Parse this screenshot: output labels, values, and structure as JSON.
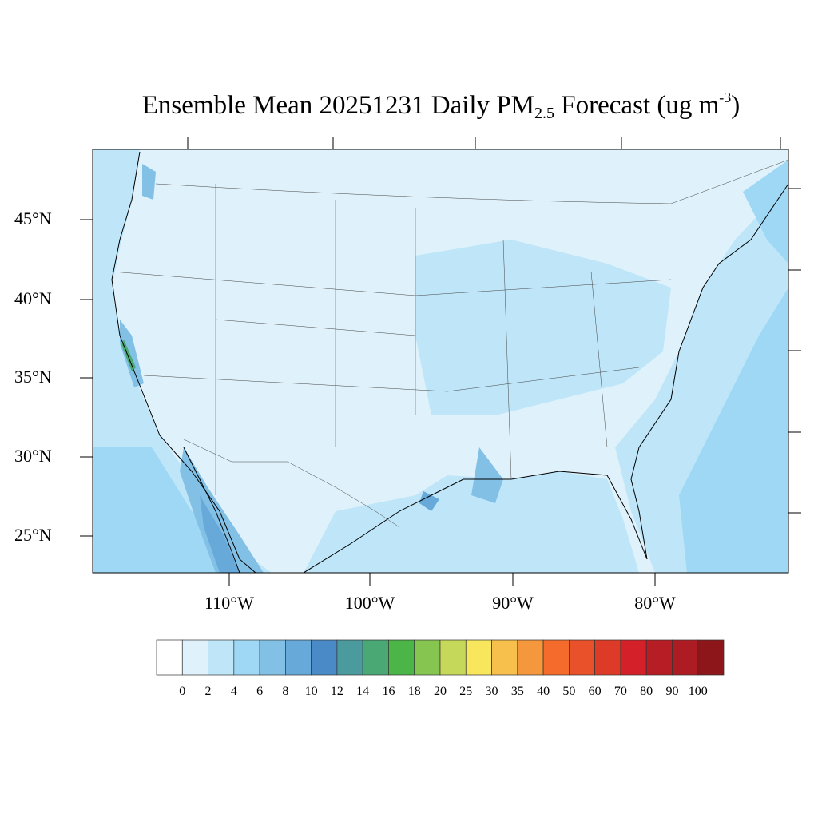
{
  "title": {
    "main": "Ensemble Mean 20251231 Daily PM",
    "subscript": "2.5",
    "after": " Forecast (ug m",
    "superscript": "-3",
    "close": ")"
  },
  "lat_labels": [
    "45°N",
    "40°N",
    "35°N",
    "30°N",
    "25°N"
  ],
  "lon_labels": [
    "110°W",
    "100°W",
    "90°W",
    "80°W"
  ],
  "colorbar": {
    "labels": [
      "0",
      "2",
      "4",
      "6",
      "8",
      "10",
      "12",
      "14",
      "16",
      "18",
      "20",
      "25",
      "30",
      "35",
      "40",
      "50",
      "60",
      "70",
      "80",
      "90",
      "100"
    ],
    "colors": [
      "#ffffff",
      "#dff2fb",
      "#bfe6f8",
      "#9fd8f5",
      "#82c0e6",
      "#67a9d9",
      "#4a8ac6",
      "#4a9a9e",
      "#4aa874",
      "#4bb548",
      "#86c550",
      "#c6d85a",
      "#f8e75c",
      "#f7bf4c",
      "#f5973c",
      "#f46b2c",
      "#e8512a",
      "#de3a28",
      "#d42029",
      "#b71d24",
      "#ad1c22",
      "#8d161a"
    ]
  }
}
